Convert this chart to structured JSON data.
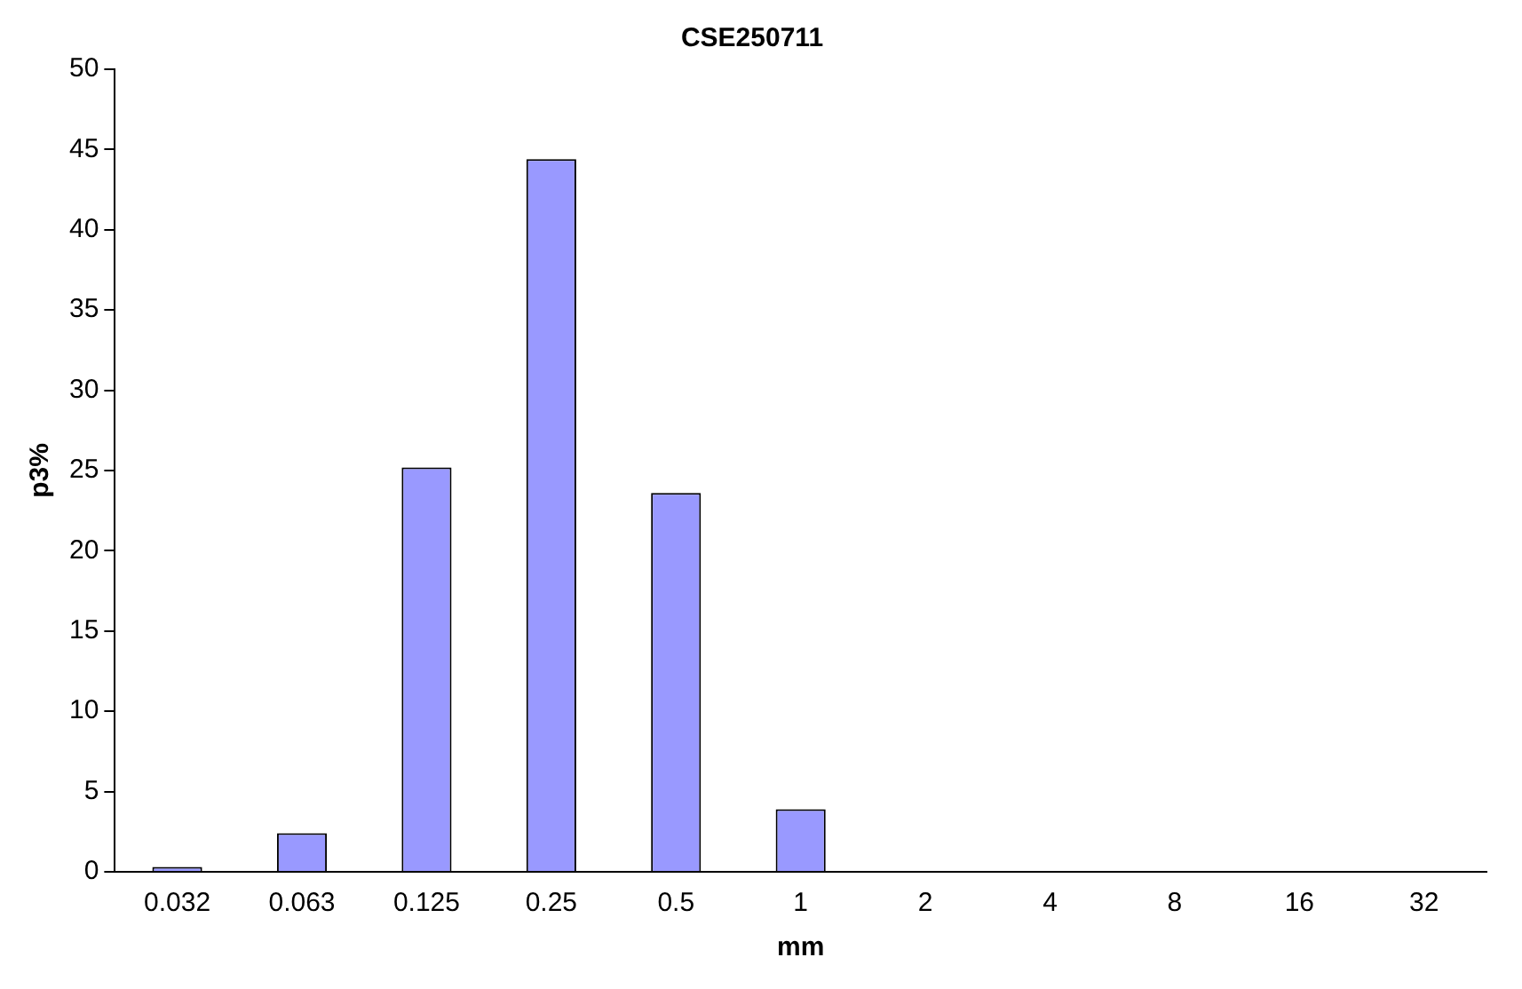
{
  "chart_data": {
    "type": "bar",
    "title": "CSE250711",
    "xlabel": "mm",
    "ylabel": "p3%",
    "categories": [
      "0.032",
      "0.063",
      "0.125",
      "0.25",
      "0.5",
      "1",
      "2",
      "4",
      "8",
      "16",
      "32"
    ],
    "values": [
      0.3,
      2.4,
      25.2,
      44.4,
      23.6,
      3.9,
      0,
      0,
      0,
      0,
      0
    ],
    "color": "#9999ff",
    "ylim": [
      0,
      50
    ],
    "yticks": [
      0,
      5,
      10,
      15,
      20,
      25,
      30,
      35,
      40,
      45,
      50
    ],
    "grid": false,
    "legend": false
  }
}
